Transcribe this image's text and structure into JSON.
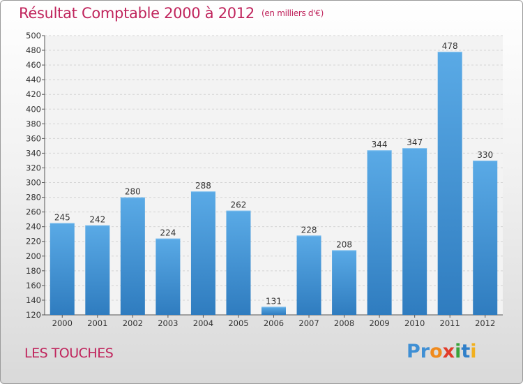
{
  "chart_data": {
    "type": "bar",
    "title": "Résultat Comptable 2000 à 2012",
    "unit": "(en milliers d'€)",
    "categories": [
      "2000",
      "2001",
      "2002",
      "2003",
      "2004",
      "2005",
      "2006",
      "2007",
      "2008",
      "2009",
      "2010",
      "2011",
      "2012"
    ],
    "values": [
      245,
      242,
      280,
      224,
      288,
      262,
      131,
      228,
      208,
      344,
      347,
      478,
      330
    ],
    "ylim": [
      120,
      500
    ],
    "ytick_step": 20,
    "xlabel": "",
    "ylabel": "",
    "grid": true,
    "bar_color": "#4a98d6"
  },
  "footer": {
    "place": "LES TOUCHES",
    "logo": [
      "Pr",
      "o",
      "x",
      "i",
      "t",
      "i"
    ]
  }
}
